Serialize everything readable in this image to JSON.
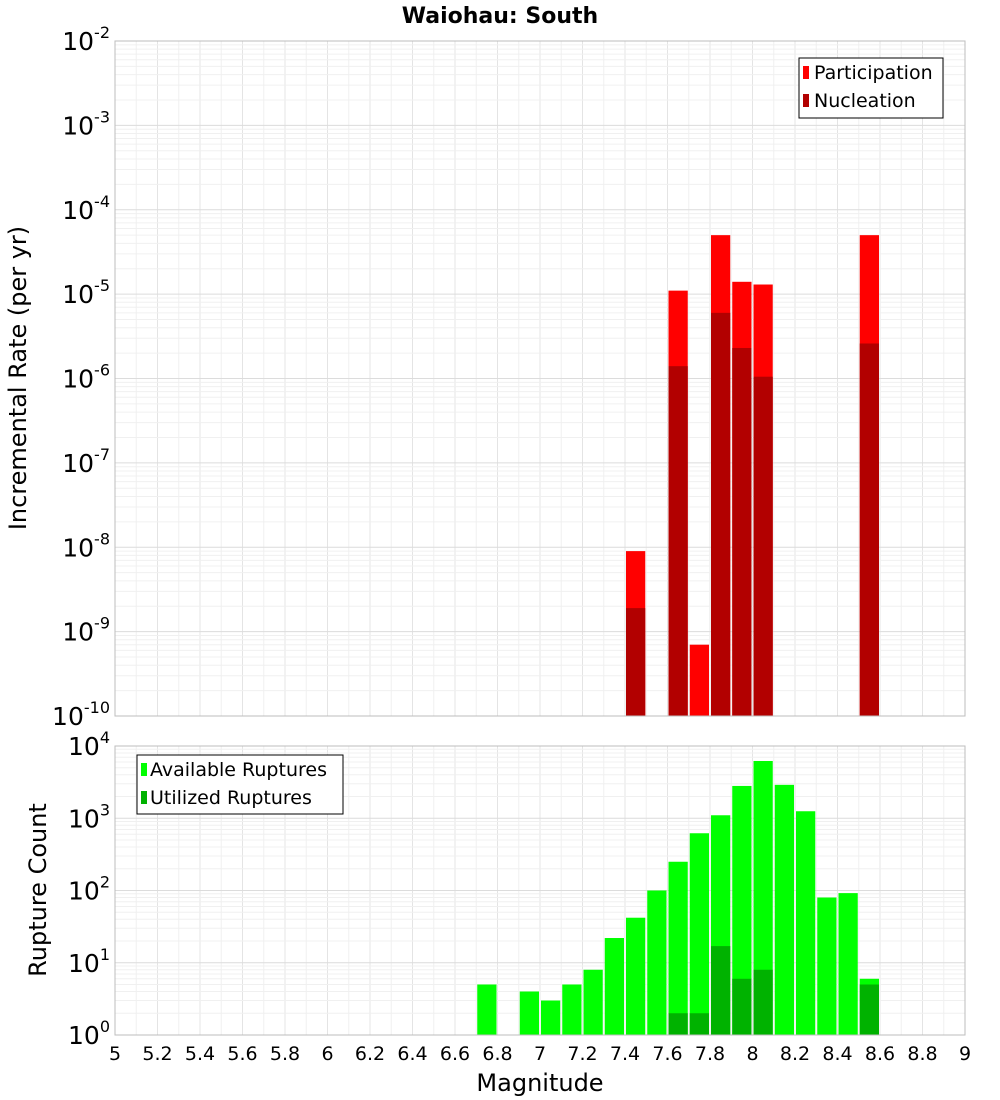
{
  "chart_data": [
    {
      "type": "bar",
      "title": "Waiohau: South",
      "xlabel": "",
      "ylabel": "Incremental Rate (per yr)",
      "y_scale": "log",
      "ylim_exponents": [
        -10,
        -2
      ],
      "xlim": [
        5,
        9
      ],
      "bar_width": 0.1,
      "grid": true,
      "legend_position": "top-right",
      "colors": {
        "Participation": "#ff0000",
        "Nucleation": "#b20000"
      },
      "series": [
        {
          "name": "Participation",
          "x": [
            7.45,
            7.65,
            7.75,
            7.85,
            7.95,
            8.05,
            8.55
          ],
          "values": [
            9e-09,
            1.1e-05,
            7e-10,
            5e-05,
            1.4e-05,
            1.3e-05,
            5e-05
          ]
        },
        {
          "name": "Nucleation",
          "x": [
            7.45,
            7.65,
            7.75,
            7.85,
            7.95,
            8.05,
            8.55
          ],
          "values": [
            1.9e-09,
            1.4e-06,
            0,
            6e-06,
            2.3e-06,
            1.05e-06,
            2.6e-06
          ]
        }
      ]
    },
    {
      "type": "bar",
      "title": "",
      "xlabel": "Magnitude",
      "ylabel": "Rupture Count",
      "y_scale": "log",
      "ylim_exponents": [
        0,
        4
      ],
      "xlim": [
        5,
        9
      ],
      "x_ticks": [
        "5",
        "5.2",
        "5.4",
        "5.6",
        "5.8",
        "6",
        "6.2",
        "6.4",
        "6.6",
        "6.8",
        "7",
        "7.2",
        "7.4",
        "7.6",
        "7.8",
        "8",
        "8.2",
        "8.4",
        "8.6",
        "8.8",
        "9"
      ],
      "bar_width": 0.1,
      "grid": true,
      "legend_position": "top-left",
      "colors": {
        "Available Ruptures": "#00ff00",
        "Utilized Ruptures": "#00b200"
      },
      "series": [
        {
          "name": "Available Ruptures",
          "x": [
            6.75,
            6.95,
            7.05,
            7.15,
            7.25,
            7.35,
            7.45,
            7.55,
            7.65,
            7.75,
            7.85,
            7.95,
            8.05,
            8.15,
            8.25,
            8.35,
            8.45,
            8.55
          ],
          "values": [
            5,
            4,
            3,
            5,
            8,
            22,
            42,
            100,
            250,
            620,
            1100,
            2800,
            6200,
            2900,
            1250,
            80,
            92,
            6
          ]
        },
        {
          "name": "Utilized Ruptures",
          "x": [
            7.45,
            7.65,
            7.75,
            7.85,
            7.95,
            8.05,
            8.55
          ],
          "values": [
            1,
            2,
            2,
            17,
            6,
            8,
            5
          ]
        }
      ]
    }
  ]
}
